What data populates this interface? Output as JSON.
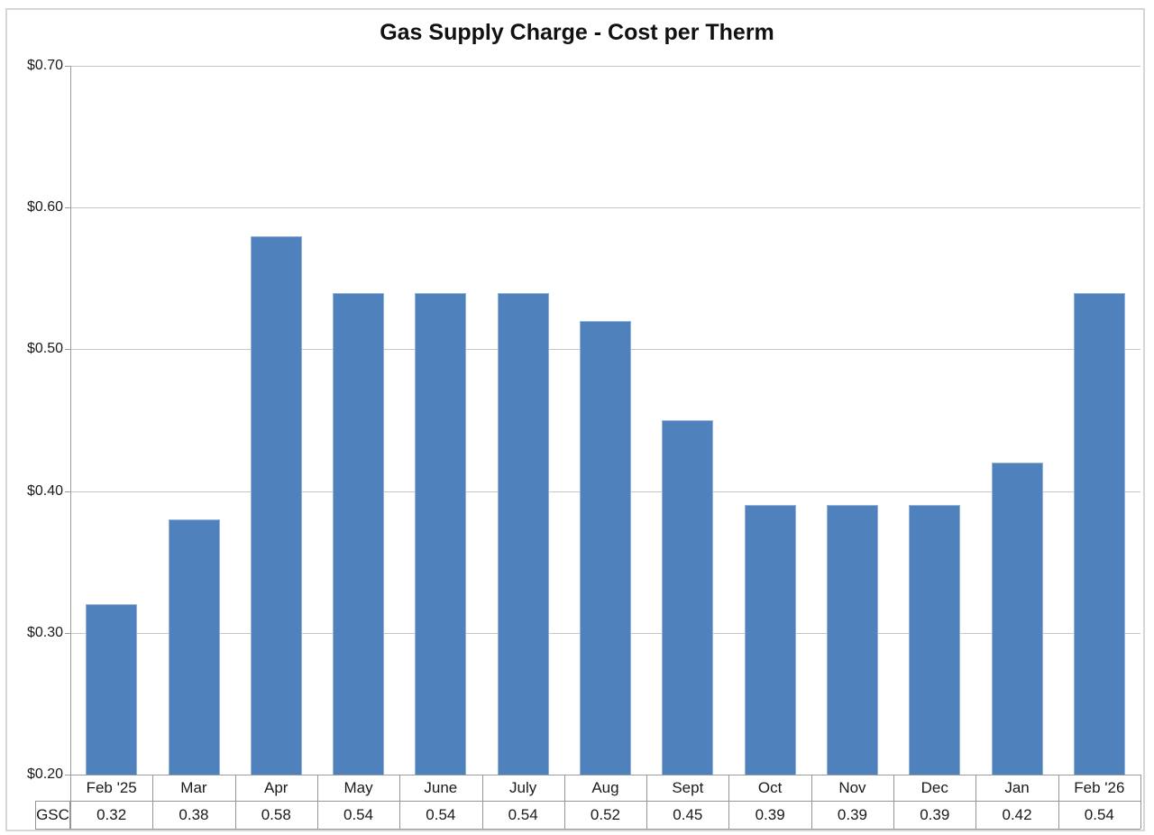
{
  "chart_data": {
    "type": "bar",
    "title": "Gas Supply Charge - Cost per Therm",
    "categories": [
      "Feb '25",
      "Mar",
      "Apr",
      "May",
      "June",
      "July",
      "Aug",
      "Sept",
      "Oct",
      "Nov",
      "Dec",
      "Jan",
      "Feb '26"
    ],
    "series": [
      {
        "name": "GSC",
        "values": [
          0.32,
          0.38,
          0.58,
          0.54,
          0.54,
          0.54,
          0.52,
          0.45,
          0.39,
          0.39,
          0.39,
          0.42,
          0.54
        ]
      }
    ],
    "xlabel": "",
    "ylabel": "",
    "ylim": [
      0.2,
      0.7
    ],
    "ytick_values": [
      0.7,
      0.6,
      0.5,
      0.4,
      0.3,
      0.2
    ],
    "ytick_labels": [
      "$0.70",
      "$0.60",
      "$0.50",
      "$0.40",
      "$0.30",
      "$0.20"
    ],
    "grid": true,
    "legend_position": "none",
    "data_table_shown": true,
    "data_table_row_label": "GSC",
    "colors": {
      "bar_fill": "#4f81bd",
      "bar_border": "#95b3d7",
      "gridline": "#c6c6c6",
      "axis_line": "#9b9b9b",
      "table_border": "#969696",
      "outer_border": "#d6d6d6",
      "text": "#1a1a1a",
      "background": "#ffffff"
    }
  }
}
